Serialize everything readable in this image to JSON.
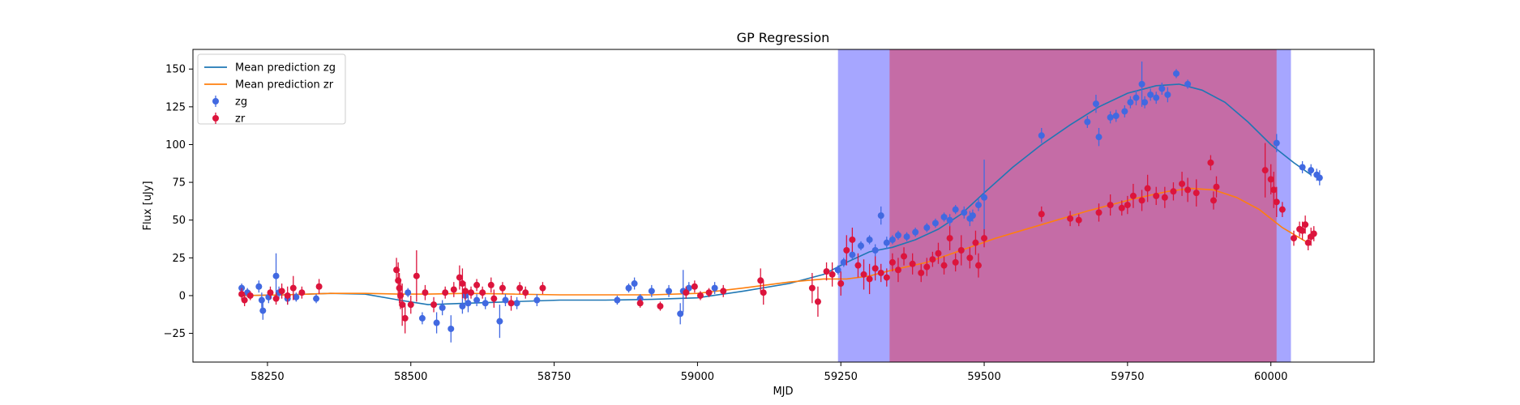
{
  "chart_data": {
    "type": "scatter",
    "title": "GP Regression",
    "xlabel": "MJD",
    "ylabel": "Flux [uJy]",
    "xlim": [
      58120,
      60180
    ],
    "ylim": [
      -44,
      163
    ],
    "xticks": [
      58250,
      58500,
      58750,
      59000,
      59250,
      59500,
      59750,
      60000
    ],
    "yticks": [
      -25,
      0,
      25,
      50,
      75,
      100,
      125,
      150
    ],
    "grid": false,
    "legend_position": "upper-left",
    "legend": [
      {
        "label": "Mean prediction zg",
        "kind": "line",
        "color": "#1f77b4"
      },
      {
        "label": "Mean prediction zr",
        "kind": "line",
        "color": "#ff7f0e"
      },
      {
        "label": "zg",
        "kind": "errorbar",
        "color": "#4169e1"
      },
      {
        "label": "zr",
        "kind": "errorbar",
        "color": "#dc143c"
      }
    ],
    "shaded_regions": [
      {
        "x0": 59245,
        "x1": 60035,
        "color": "#0000ff",
        "alpha": 0.35
      },
      {
        "x0": 59335,
        "x1": 60010,
        "color": "#ff0000",
        "alpha": 0.35
      }
    ],
    "series": [
      {
        "name": "Mean prediction zg",
        "type": "line",
        "color": "#1f77b4",
        "x": [
          58200,
          58280,
          58360,
          58420,
          58480,
          58530,
          58600,
          58680,
          58760,
          58840,
          58920,
          59000,
          59080,
          59160,
          59220,
          59260,
          59300,
          59340,
          59380,
          59420,
          59460,
          59500,
          59550,
          59600,
          59650,
          59700,
          59750,
          59800,
          59840,
          59880,
          59920,
          59960,
          60000,
          60040,
          60070
        ],
        "y": [
          0,
          0.5,
          1.5,
          1,
          -3,
          -6,
          -5,
          -4,
          -3,
          -3,
          -2.5,
          -1.5,
          3,
          8,
          14,
          22,
          29,
          32,
          37,
          44,
          54,
          68,
          85,
          100,
          113,
          125,
          134,
          139,
          140,
          136,
          128,
          115,
          100,
          88,
          80
        ]
      },
      {
        "name": "Mean prediction zr",
        "type": "line",
        "color": "#ff7f0e",
        "x": [
          58200,
          58280,
          58360,
          58420,
          58480,
          58530,
          58600,
          58680,
          58760,
          58840,
          58920,
          59000,
          59080,
          59160,
          59220,
          59260,
          59300,
          59340,
          59400,
          59460,
          59520,
          59600,
          59680,
          59760,
          59820,
          59860,
          59900,
          59940,
          59980,
          60020,
          60060
        ],
        "y": [
          0,
          0.5,
          1.5,
          1.5,
          1,
          1,
          1.5,
          1,
          0.5,
          0.5,
          0.5,
          1.5,
          5,
          9,
          11,
          11,
          13,
          17,
          22,
          30,
          38,
          47,
          56,
          64,
          69,
          71,
          70,
          65,
          57,
          45,
          36
        ]
      },
      {
        "name": "zg",
        "type": "errorbar",
        "color": "#4169e1",
        "points": [
          [
            58205,
            5,
            3
          ],
          [
            58215,
            2,
            3
          ],
          [
            58235,
            6,
            4
          ],
          [
            58240,
            -3,
            5
          ],
          [
            58242,
            -10,
            6
          ],
          [
            58252,
            -1,
            4
          ],
          [
            58265,
            13,
            15
          ],
          [
            58270,
            2,
            4
          ],
          [
            58285,
            -2,
            4
          ],
          [
            58300,
            -1,
            3
          ],
          [
            58335,
            -2,
            3
          ],
          [
            58495,
            2,
            3
          ],
          [
            58520,
            -15,
            4
          ],
          [
            58545,
            -18,
            7
          ],
          [
            58555,
            -8,
            5
          ],
          [
            58570,
            -22,
            9
          ],
          [
            58590,
            -7,
            5
          ],
          [
            58595,
            0,
            4
          ],
          [
            58600,
            -5,
            6
          ],
          [
            58615,
            -3,
            4
          ],
          [
            58630,
            -5,
            4
          ],
          [
            58655,
            -17,
            11
          ],
          [
            58665,
            -3,
            4
          ],
          [
            58685,
            -5,
            4
          ],
          [
            58720,
            -3,
            4
          ],
          [
            58860,
            -3,
            3
          ],
          [
            58880,
            5,
            3
          ],
          [
            58890,
            8,
            4
          ],
          [
            58900,
            -2,
            3
          ],
          [
            58920,
            3,
            4
          ],
          [
            58950,
            3,
            4
          ],
          [
            58970,
            -12,
            7
          ],
          [
            58975,
            3,
            14
          ],
          [
            58985,
            5,
            4
          ],
          [
            59030,
            5,
            4
          ],
          [
            59245,
            17,
            3
          ],
          [
            59255,
            22,
            3
          ],
          [
            59270,
            27,
            3
          ],
          [
            59285,
            33,
            3
          ],
          [
            59300,
            37,
            3
          ],
          [
            59310,
            30,
            4
          ],
          [
            59320,
            53,
            6
          ],
          [
            59330,
            35,
            4
          ],
          [
            59340,
            37,
            3
          ],
          [
            59350,
            40,
            3
          ],
          [
            59365,
            39,
            3
          ],
          [
            59380,
            42,
            3
          ],
          [
            59400,
            45,
            3
          ],
          [
            59415,
            48,
            3
          ],
          [
            59430,
            52,
            3
          ],
          [
            59440,
            50,
            4
          ],
          [
            59450,
            57,
            3
          ],
          [
            59465,
            55,
            4
          ],
          [
            59475,
            51,
            5
          ],
          [
            59480,
            53,
            4
          ],
          [
            59490,
            60,
            4
          ],
          [
            59500,
            65,
            25
          ],
          [
            59600,
            106,
            5
          ],
          [
            59680,
            115,
            4
          ],
          [
            59695,
            127,
            6
          ],
          [
            59700,
            105,
            6
          ],
          [
            59720,
            118,
            4
          ],
          [
            59730,
            119,
            4
          ],
          [
            59745,
            122,
            4
          ],
          [
            59755,
            128,
            4
          ],
          [
            59765,
            131,
            5
          ],
          [
            59775,
            140,
            15
          ],
          [
            59780,
            128,
            4
          ],
          [
            59790,
            133,
            4
          ],
          [
            59800,
            131,
            4
          ],
          [
            59810,
            137,
            4
          ],
          [
            59820,
            133,
            5
          ],
          [
            59835,
            147,
            3
          ],
          [
            59855,
            140,
            3
          ],
          [
            60010,
            101,
            6
          ],
          [
            60055,
            85,
            4
          ],
          [
            60070,
            83,
            4
          ],
          [
            60080,
            80,
            4
          ],
          [
            60085,
            78,
            5
          ]
        ]
      },
      {
        "name": "zr",
        "type": "errorbar",
        "color": "#dc143c",
        "points": [
          [
            58205,
            1,
            4
          ],
          [
            58210,
            -3,
            4
          ],
          [
            58220,
            0,
            3
          ],
          [
            58255,
            2,
            4
          ],
          [
            58265,
            -2,
            4
          ],
          [
            58275,
            3,
            5
          ],
          [
            58285,
            0,
            6
          ],
          [
            58295,
            5,
            8
          ],
          [
            58310,
            2,
            4
          ],
          [
            58340,
            6,
            5
          ],
          [
            58475,
            17,
            8
          ],
          [
            58478,
            10,
            12
          ],
          [
            58480,
            5,
            10
          ],
          [
            58482,
            0,
            9
          ],
          [
            58485,
            -6,
            14
          ],
          [
            58490,
            -15,
            10
          ],
          [
            58500,
            -6,
            6
          ],
          [
            58510,
            13,
            17
          ],
          [
            58525,
            2,
            5
          ],
          [
            58540,
            -6,
            5
          ],
          [
            58560,
            2,
            4
          ],
          [
            58575,
            4,
            5
          ],
          [
            58585,
            12,
            8
          ],
          [
            58590,
            8,
            10
          ],
          [
            58595,
            3,
            6
          ],
          [
            58605,
            2,
            4
          ],
          [
            58615,
            7,
            4
          ],
          [
            58625,
            2,
            4
          ],
          [
            58640,
            7,
            5
          ],
          [
            58645,
            -2,
            6
          ],
          [
            58660,
            5,
            4
          ],
          [
            58675,
            -5,
            5
          ],
          [
            58690,
            5,
            4
          ],
          [
            58700,
            2,
            4
          ],
          [
            58730,
            5,
            4
          ],
          [
            58900,
            -5,
            3
          ],
          [
            58935,
            -7,
            3
          ],
          [
            58980,
            2,
            4
          ],
          [
            58995,
            6,
            4
          ],
          [
            59005,
            0,
            3
          ],
          [
            59020,
            2,
            3
          ],
          [
            59045,
            3,
            4
          ],
          [
            59110,
            10,
            8
          ],
          [
            59115,
            2,
            8
          ],
          [
            59200,
            5,
            10
          ],
          [
            59210,
            -4,
            10
          ],
          [
            59225,
            16,
            6
          ],
          [
            59235,
            14,
            8
          ],
          [
            59250,
            8,
            8
          ],
          [
            59260,
            30,
            10
          ],
          [
            59270,
            37,
            8
          ],
          [
            59280,
            20,
            8
          ],
          [
            59290,
            14,
            10
          ],
          [
            59300,
            11,
            10
          ],
          [
            59310,
            18,
            8
          ],
          [
            59320,
            15,
            6
          ],
          [
            59330,
            12,
            6
          ],
          [
            59340,
            22,
            6
          ],
          [
            59350,
            17,
            8
          ],
          [
            59360,
            26,
            6
          ],
          [
            59375,
            21,
            7
          ],
          [
            59390,
            15,
            6
          ],
          [
            59400,
            19,
            6
          ],
          [
            59410,
            24,
            5
          ],
          [
            59420,
            28,
            7
          ],
          [
            59430,
            20,
            6
          ],
          [
            59440,
            38,
            8
          ],
          [
            59450,
            22,
            6
          ],
          [
            59460,
            30,
            10
          ],
          [
            59475,
            25,
            7
          ],
          [
            59485,
            35,
            8
          ],
          [
            59490,
            20,
            8
          ],
          [
            59500,
            38,
            6
          ],
          [
            59600,
            54,
            5
          ],
          [
            59650,
            51,
            5
          ],
          [
            59665,
            50,
            4
          ],
          [
            59700,
            55,
            6
          ],
          [
            59720,
            60,
            7
          ],
          [
            59740,
            58,
            5
          ],
          [
            59750,
            60,
            6
          ],
          [
            59760,
            66,
            8
          ],
          [
            59775,
            63,
            7
          ],
          [
            59785,
            71,
            9
          ],
          [
            59800,
            66,
            6
          ],
          [
            59815,
            65,
            7
          ],
          [
            59830,
            69,
            6
          ],
          [
            59845,
            74,
            8
          ],
          [
            59855,
            70,
            8
          ],
          [
            59870,
            68,
            9
          ],
          [
            59895,
            88,
            5
          ],
          [
            59900,
            63,
            6
          ],
          [
            59905,
            72,
            7
          ],
          [
            59990,
            83,
            18
          ],
          [
            60000,
            77,
            10
          ],
          [
            60005,
            70,
            12
          ],
          [
            60010,
            62,
            10
          ],
          [
            60020,
            57,
            5
          ],
          [
            60040,
            38,
            5
          ],
          [
            60050,
            44,
            5
          ],
          [
            60055,
            43,
            6
          ],
          [
            60060,
            47,
            6
          ],
          [
            60065,
            35,
            5
          ],
          [
            60070,
            39,
            6
          ],
          [
            60075,
            41,
            5
          ]
        ]
      }
    ]
  }
}
